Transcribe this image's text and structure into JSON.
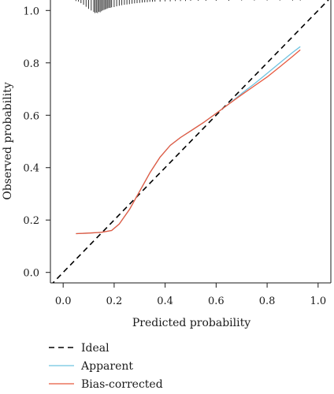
{
  "chart_data": {
    "type": "line",
    "xlabel": "Predicted probability",
    "ylabel": "Observed probability",
    "xlim": [
      -0.05,
      1.05
    ],
    "ylim": [
      -0.04,
      1.04
    ],
    "xticks": [
      0.0,
      0.2,
      0.4,
      0.6,
      0.8,
      1.0
    ],
    "yticks": [
      0.0,
      0.2,
      0.4,
      0.6,
      0.8,
      1.0
    ],
    "xtick_labels": [
      "0.0",
      "0.2",
      "0.4",
      "0.6",
      "0.8",
      "1.0"
    ],
    "ytick_labels": [
      "0.0",
      "0.2",
      "0.4",
      "0.6",
      "0.8",
      "1.0"
    ],
    "grid": false,
    "legend_position": "bottom-left, below plot",
    "series": [
      {
        "name": "Ideal",
        "style": "dashed",
        "color": "#000000",
        "x": [
          -0.05,
          1.05
        ],
        "y": [
          -0.05,
          1.05
        ]
      },
      {
        "name": "Apparent",
        "style": "solid",
        "color": "#6fc3e0",
        "x": [
          0.05,
          0.1,
          0.15,
          0.19,
          0.22,
          0.26,
          0.3,
          0.34,
          0.38,
          0.42,
          0.46,
          0.5,
          0.55,
          0.6,
          0.65,
          0.7,
          0.75,
          0.8,
          0.85,
          0.9,
          0.93
        ],
        "y": [
          0.148,
          0.15,
          0.153,
          0.16,
          0.185,
          0.24,
          0.31,
          0.38,
          0.44,
          0.485,
          0.515,
          0.54,
          0.572,
          0.607,
          0.643,
          0.683,
          0.72,
          0.76,
          0.8,
          0.84,
          0.862
        ]
      },
      {
        "name": "Bias-corrected",
        "style": "solid",
        "color": "#e8593f",
        "x": [
          0.05,
          0.1,
          0.15,
          0.19,
          0.22,
          0.26,
          0.3,
          0.34,
          0.38,
          0.42,
          0.46,
          0.5,
          0.55,
          0.6,
          0.65,
          0.7,
          0.75,
          0.8,
          0.85,
          0.9,
          0.93
        ],
        "y": [
          0.148,
          0.15,
          0.153,
          0.16,
          0.185,
          0.24,
          0.31,
          0.38,
          0.44,
          0.485,
          0.515,
          0.54,
          0.572,
          0.607,
          0.643,
          0.678,
          0.712,
          0.746,
          0.785,
          0.825,
          0.85
        ]
      }
    ],
    "rug": {
      "description": "distribution of predicted probabilities drawn as vertical spikes along the top axis",
      "x": [
        0.05,
        0.06,
        0.07,
        0.08,
        0.09,
        0.1,
        0.11,
        0.12,
        0.125,
        0.13,
        0.135,
        0.14,
        0.145,
        0.15,
        0.155,
        0.16,
        0.165,
        0.17,
        0.175,
        0.18,
        0.185,
        0.19,
        0.2,
        0.21,
        0.22,
        0.23,
        0.24,
        0.25,
        0.26,
        0.27,
        0.28,
        0.29,
        0.3,
        0.31,
        0.32,
        0.33,
        0.34,
        0.35,
        0.36,
        0.38,
        0.4,
        0.42,
        0.44,
        0.46,
        0.48,
        0.5,
        0.53,
        0.56,
        0.6,
        0.65,
        0.7,
        0.75,
        0.8,
        0.85,
        0.9,
        0.93
      ],
      "height": [
        0.004,
        0.006,
        0.012,
        0.018,
        0.026,
        0.034,
        0.04,
        0.046,
        0.05,
        0.048,
        0.05,
        0.045,
        0.047,
        0.043,
        0.04,
        0.038,
        0.036,
        0.034,
        0.032,
        0.03,
        0.03,
        0.028,
        0.027,
        0.024,
        0.022,
        0.02,
        0.018,
        0.017,
        0.016,
        0.014,
        0.013,
        0.012,
        0.011,
        0.01,
        0.009,
        0.008,
        0.007,
        0.007,
        0.006,
        0.006,
        0.005,
        0.005,
        0.004,
        0.004,
        0.004,
        0.003,
        0.003,
        0.003,
        0.003,
        0.003,
        0.002,
        0.002,
        0.002,
        0.002,
        0.002,
        0.002
      ]
    }
  }
}
